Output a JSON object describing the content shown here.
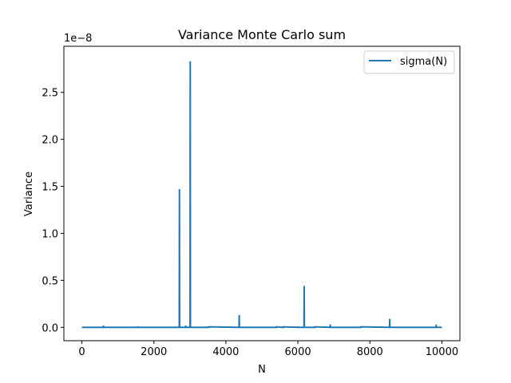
{
  "chart_data": {
    "type": "line",
    "title": "Variance Monte Carlo sum",
    "xlabel": "N",
    "ylabel": "Variance",
    "y_offset_text": "1e−8",
    "y_scale": 1e-08,
    "xlim": [
      -500,
      10500
    ],
    "ylim": [
      -0.142,
      2.99
    ],
    "xticks": [
      0,
      2000,
      4000,
      6000,
      8000,
      10000
    ],
    "xtick_labels": [
      "0",
      "2000",
      "4000",
      "6000",
      "8000",
      "10000"
    ],
    "yticks": [
      0.0,
      0.5,
      1.0,
      1.5,
      2.0,
      2.5
    ],
    "ytick_labels": [
      "0.0",
      "0.5",
      "1.0",
      "1.5",
      "2.0",
      "2.5"
    ],
    "grid": false,
    "legend_position": "top-right",
    "color": "#1f77b4",
    "series": [
      {
        "name": "sigma(N)",
        "x": [
          0,
          598,
          600,
          602,
          1560,
          1562,
          1564,
          2705,
          2710,
          2715,
          2880,
          2882,
          2884,
          3005,
          3010,
          3015,
          3520,
          3522,
          4365,
          4370,
          4375,
          5400,
          5402,
          5600,
          5602,
          6000,
          6002,
          6004,
          6170,
          6175,
          6180,
          6470,
          6472,
          6895,
          6900,
          6905,
          7750,
          7752,
          8545,
          8550,
          8555,
          9840,
          9842,
          9844,
          10000
        ],
        "y": [
          0,
          0,
          0.02,
          0,
          0,
          0.01,
          0,
          0,
          1.47,
          0,
          0,
          0.02,
          0,
          0,
          2.83,
          0,
          0,
          0.005,
          0,
          0.13,
          0,
          0,
          0.005,
          0,
          0.005,
          0,
          0.01,
          0,
          0,
          0.44,
          0,
          0,
          0.005,
          0,
          0.03,
          0,
          0,
          0.005,
          0,
          0.09,
          0,
          0,
          0.03,
          0,
          0
        ]
      }
    ]
  }
}
